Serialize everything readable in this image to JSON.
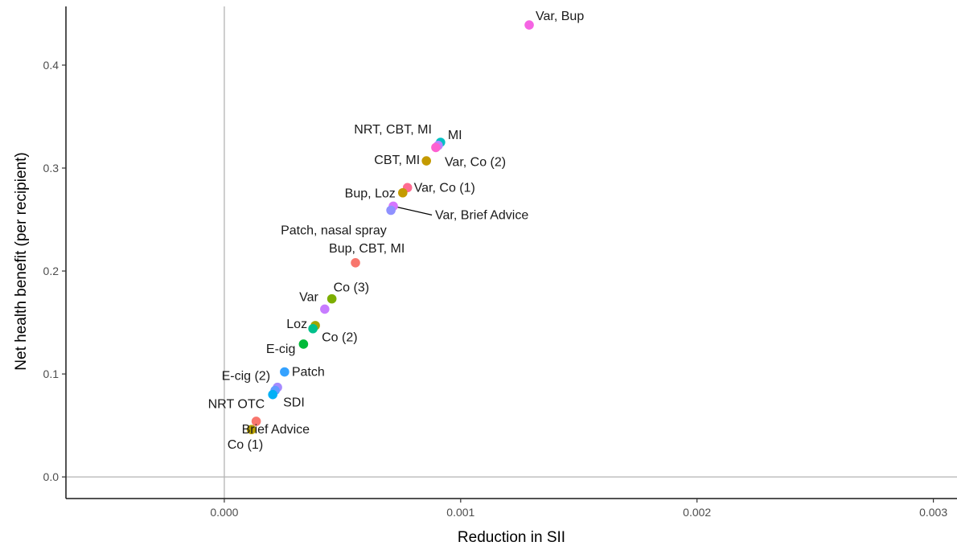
{
  "chart_data": {
    "type": "scatter",
    "xlabel": "Reduction in SII",
    "ylabel": "Net health benefit (per recipient)",
    "xlim": [
      -0.00067,
      0.0031
    ],
    "ylim": [
      -0.021,
      0.457
    ],
    "x_ticks": [
      0.0,
      0.001,
      0.002,
      0.003
    ],
    "x_tick_labels": [
      "0.000",
      "0.001",
      "0.002",
      "0.003"
    ],
    "y_ticks": [
      0.0,
      0.1,
      0.2,
      0.3,
      0.4
    ],
    "y_tick_labels": [
      "0.0",
      "0.1",
      "0.2",
      "0.3",
      "0.4"
    ],
    "reference_lines": {
      "x": 0,
      "y": 0
    },
    "grid": false,
    "legend": "none",
    "points": [
      {
        "label": "Var, Bup",
        "x": 0.00129,
        "y": 0.439,
        "color": "#f564e3"
      },
      {
        "label": "MI",
        "x": 0.000915,
        "y": 0.325,
        "color": "#00bfc4"
      },
      {
        "label": "NRT, CBT, MI",
        "x": 0.000905,
        "y": 0.322,
        "color": "#b983ff"
      },
      {
        "label": "Var, Co (2)",
        "x": 0.000895,
        "y": 0.32,
        "color": "#fd61d1"
      },
      {
        "label": "CBT, MI",
        "x": 0.000855,
        "y": 0.307,
        "color": "#c49a00"
      },
      {
        "label": "Var, Co (1)",
        "x": 0.000775,
        "y": 0.281,
        "color": "#ff6c91"
      },
      {
        "label": "Bup, Loz",
        "x": 0.000755,
        "y": 0.276,
        "color": "#c49a00"
      },
      {
        "label": "Var, Brief Advice",
        "x": 0.000715,
        "y": 0.263,
        "color": "#d575fe"
      },
      {
        "label": "Patch, nasal spray",
        "x": 0.000705,
        "y": 0.259,
        "color": "#8f91ff"
      },
      {
        "label": "Bup, CBT, MI",
        "x": 0.000555,
        "y": 0.208,
        "color": "#f8766d"
      },
      {
        "label": "Co (3)",
        "x": 0.000455,
        "y": 0.173,
        "color": "#7cae00"
      },
      {
        "label": "Var",
        "x": 0.000425,
        "y": 0.163,
        "color": "#c77cff"
      },
      {
        "label": "Loz",
        "x": 0.000385,
        "y": 0.147,
        "color": "#a3a500"
      },
      {
        "label": "Co (2)",
        "x": 0.000375,
        "y": 0.144,
        "color": "#00c08b"
      },
      {
        "label": "E-cig",
        "x": 0.000335,
        "y": 0.129,
        "color": "#00ba38"
      },
      {
        "label": "Patch",
        "x": 0.000255,
        "y": 0.102,
        "color": "#35a2ff"
      },
      {
        "label": "E-cig (2)",
        "x": 0.000225,
        "y": 0.087,
        "color": "#a58aff"
      },
      {
        "label": "SDI",
        "x": 0.000215,
        "y": 0.084,
        "color": "#619cff"
      },
      {
        "label": "NRT OTC",
        "x": 0.000205,
        "y": 0.08,
        "color": "#00b0f6"
      },
      {
        "label": "Brief Advice",
        "x": 0.000135,
        "y": 0.054,
        "color": "#f8766d"
      },
      {
        "label": "Co (1)",
        "x": 0.000115,
        "y": 0.046,
        "color": "#b79f00"
      }
    ]
  }
}
